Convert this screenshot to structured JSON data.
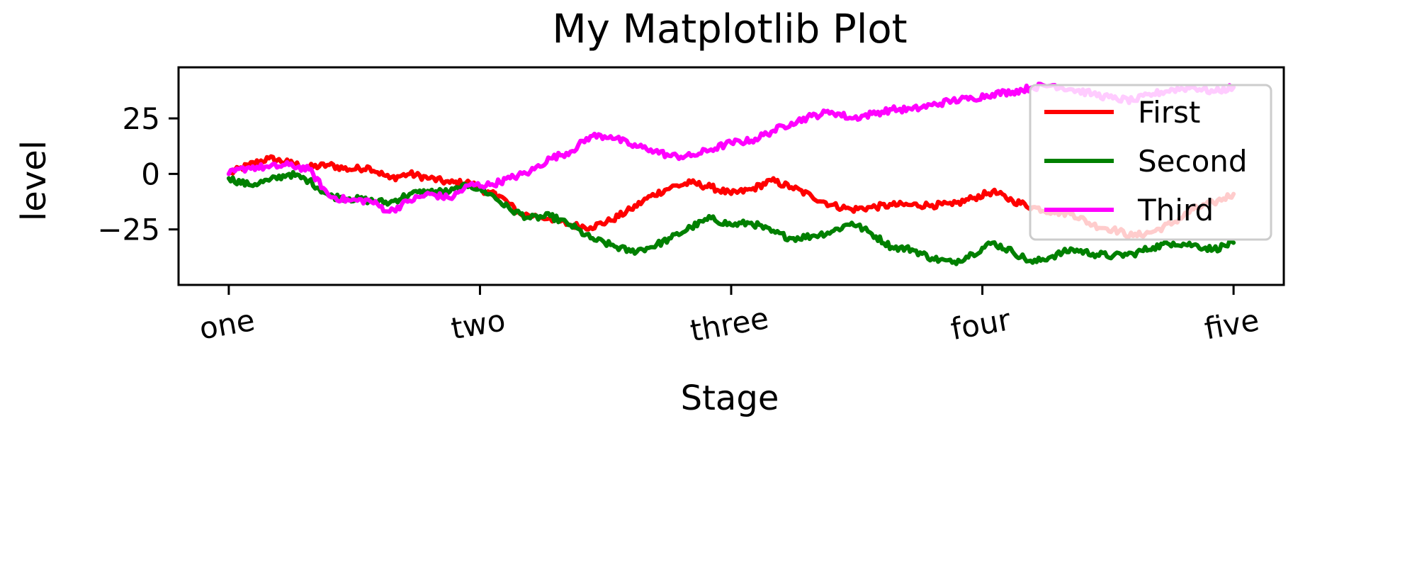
{
  "chart_data": {
    "type": "line",
    "title": "My Matplotlib Plot",
    "xlabel": "Stage",
    "ylabel": "level",
    "x_ticks": [
      {
        "value": 0,
        "label": "one"
      },
      {
        "value": 250,
        "label": "two"
      },
      {
        "value": 500,
        "label": "three"
      },
      {
        "value": 750,
        "label": "four"
      },
      {
        "value": 1000,
        "label": "five"
      }
    ],
    "y_ticks": [
      {
        "value": 25,
        "label": "25"
      },
      {
        "value": 0,
        "label": "0"
      },
      {
        "value": -25,
        "label": "−25"
      }
    ],
    "xlim": [
      -50,
      1050
    ],
    "ylim": [
      -50,
      48
    ],
    "grid": false,
    "legend_position": "upper right",
    "series": [
      {
        "name": "First",
        "color": "#ff0000",
        "points": [
          [
            0,
            0
          ],
          [
            20,
            4
          ],
          [
            40,
            7
          ],
          [
            60,
            5
          ],
          [
            80,
            3
          ],
          [
            100,
            4
          ],
          [
            120,
            2
          ],
          [
            140,
            3
          ],
          [
            160,
            -2
          ],
          [
            180,
            0
          ],
          [
            200,
            -2
          ],
          [
            220,
            -4
          ],
          [
            240,
            -4
          ],
          [
            260,
            -9
          ],
          [
            270,
            -10
          ],
          [
            290,
            -18
          ],
          [
            320,
            -20
          ],
          [
            340,
            -23
          ],
          [
            360,
            -24
          ],
          [
            380,
            -21
          ],
          [
            400,
            -16
          ],
          [
            420,
            -10
          ],
          [
            440,
            -6
          ],
          [
            460,
            -4
          ],
          [
            480,
            -6
          ],
          [
            500,
            -9
          ],
          [
            520,
            -7
          ],
          [
            540,
            -3
          ],
          [
            560,
            -6
          ],
          [
            580,
            -10
          ],
          [
            600,
            -14
          ],
          [
            620,
            -16
          ],
          [
            640,
            -15
          ],
          [
            660,
            -14
          ],
          [
            680,
            -14
          ],
          [
            700,
            -14
          ],
          [
            720,
            -14
          ],
          [
            740,
            -11
          ],
          [
            760,
            -8
          ],
          [
            780,
            -12
          ],
          [
            800,
            -15
          ],
          [
            820,
            -17
          ],
          [
            840,
            -18
          ],
          [
            860,
            -23
          ],
          [
            880,
            -25
          ],
          [
            900,
            -28
          ],
          [
            920,
            -26
          ],
          [
            940,
            -22
          ],
          [
            960,
            -16
          ],
          [
            980,
            -13
          ],
          [
            1000,
            -9
          ]
        ]
      },
      {
        "name": "Second",
        "color": "#008000",
        "points": [
          [
            0,
            -2
          ],
          [
            20,
            -5
          ],
          [
            40,
            -3
          ],
          [
            60,
            0
          ],
          [
            80,
            -3
          ],
          [
            100,
            -10
          ],
          [
            120,
            -11
          ],
          [
            140,
            -12
          ],
          [
            160,
            -13
          ],
          [
            180,
            -9
          ],
          [
            200,
            -8
          ],
          [
            220,
            -8
          ],
          [
            240,
            -5
          ],
          [
            260,
            -9
          ],
          [
            280,
            -16
          ],
          [
            300,
            -20
          ],
          [
            320,
            -19
          ],
          [
            340,
            -23
          ],
          [
            360,
            -29
          ],
          [
            380,
            -32
          ],
          [
            400,
            -35
          ],
          [
            420,
            -33
          ],
          [
            440,
            -29
          ],
          [
            460,
            -24
          ],
          [
            480,
            -20
          ],
          [
            500,
            -23
          ],
          [
            520,
            -22
          ],
          [
            540,
            -26
          ],
          [
            560,
            -29
          ],
          [
            580,
            -28
          ],
          [
            600,
            -26
          ],
          [
            620,
            -22
          ],
          [
            640,
            -27
          ],
          [
            660,
            -33
          ],
          [
            680,
            -34
          ],
          [
            700,
            -38
          ],
          [
            720,
            -40
          ],
          [
            740,
            -36
          ],
          [
            760,
            -31
          ],
          [
            780,
            -35
          ],
          [
            800,
            -40
          ],
          [
            820,
            -37
          ],
          [
            840,
            -34
          ],
          [
            860,
            -36
          ],
          [
            880,
            -37
          ],
          [
            900,
            -36
          ],
          [
            920,
            -33
          ],
          [
            940,
            -31
          ],
          [
            960,
            -32
          ],
          [
            980,
            -34
          ],
          [
            1000,
            -31
          ]
        ]
      },
      {
        "name": "Third",
        "color": "#ff00ff",
        "points": [
          [
            0,
            0
          ],
          [
            20,
            3
          ],
          [
            40,
            3
          ],
          [
            60,
            4
          ],
          [
            80,
            2
          ],
          [
            100,
            -10
          ],
          [
            120,
            -12
          ],
          [
            140,
            -12
          ],
          [
            160,
            -17
          ],
          [
            180,
            -12
          ],
          [
            200,
            -9
          ],
          [
            220,
            -11
          ],
          [
            240,
            -5
          ],
          [
            260,
            -5
          ],
          [
            280,
            -2
          ],
          [
            300,
            1
          ],
          [
            320,
            7
          ],
          [
            340,
            10
          ],
          [
            360,
            17
          ],
          [
            380,
            17
          ],
          [
            400,
            13
          ],
          [
            420,
            11
          ],
          [
            440,
            8
          ],
          [
            460,
            8
          ],
          [
            480,
            11
          ],
          [
            500,
            14
          ],
          [
            520,
            15
          ],
          [
            540,
            19
          ],
          [
            560,
            23
          ],
          [
            580,
            26
          ],
          [
            600,
            28
          ],
          [
            620,
            25
          ],
          [
            640,
            27
          ],
          [
            660,
            29
          ],
          [
            680,
            29
          ],
          [
            700,
            31
          ],
          [
            720,
            33
          ],
          [
            740,
            34
          ],
          [
            760,
            36
          ],
          [
            780,
            37
          ],
          [
            800,
            39
          ],
          [
            820,
            40
          ],
          [
            840,
            38
          ],
          [
            860,
            36
          ],
          [
            880,
            34
          ],
          [
            900,
            33
          ],
          [
            920,
            36
          ],
          [
            940,
            38
          ],
          [
            960,
            39
          ],
          [
            980,
            37
          ],
          [
            1000,
            39
          ]
        ]
      }
    ]
  }
}
